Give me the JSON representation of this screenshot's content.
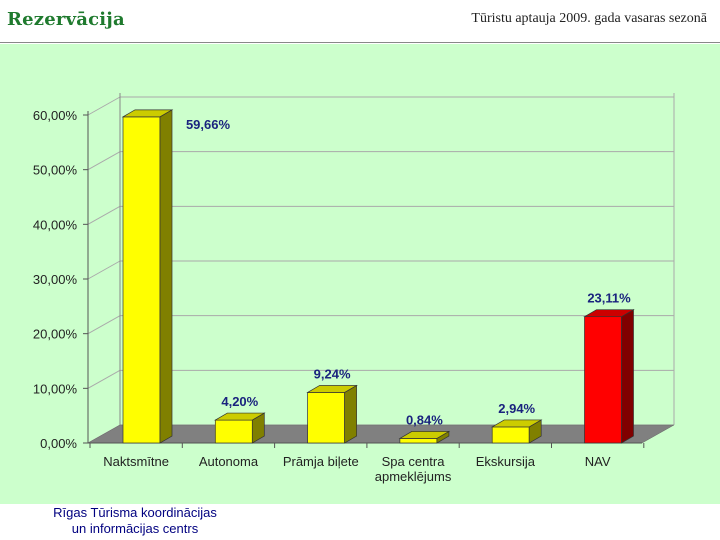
{
  "header": {
    "title": "Rezervācija",
    "subtitle": "Tūristu aptauja 2009. gada vasaras sezonā"
  },
  "footer": {
    "line1": "Rīgas Tūrisma koordinācijas",
    "line2": "un informācijas centrs"
  },
  "chart_data": {
    "type": "bar",
    "categories": [
      "Naktsmītne",
      "Autonoma",
      "Prāmja biļete",
      "Spa centra apmeklējums",
      "Ekskursija",
      "NAV"
    ],
    "values": [
      59.66,
      4.2,
      9.24,
      0.84,
      2.94,
      23.11
    ],
    "data_labels": [
      "59,66%",
      "4,20%",
      "9,24%",
      "0,84%",
      "2,94%",
      "23,11%"
    ],
    "y_ticks": [
      0,
      10,
      20,
      30,
      40,
      50,
      60
    ],
    "y_tick_labels": [
      "0,00%",
      "10,00%",
      "20,00%",
      "30,00%",
      "40,00%",
      "50,00%",
      "60,00%"
    ],
    "ylim": [
      0,
      60
    ],
    "grid": true,
    "colors": [
      "#ffff00",
      "#ffff00",
      "#ffff00",
      "#ffff00",
      "#ffff00",
      "#ff0000"
    ],
    "label_color": "#1a237e",
    "floor_color": "#808080"
  }
}
